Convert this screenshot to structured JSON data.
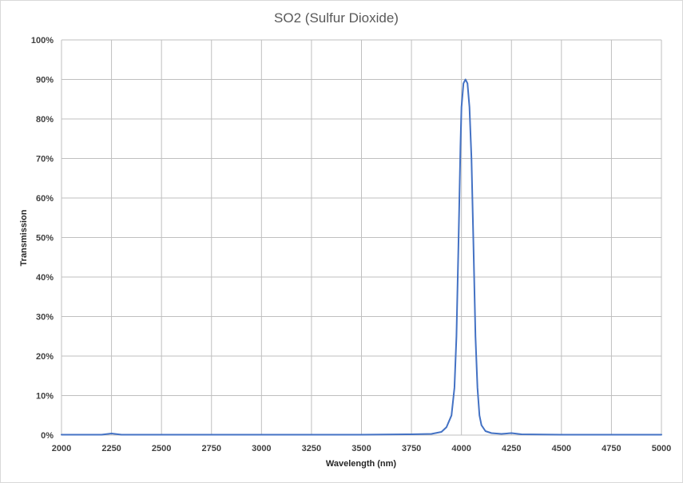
{
  "chart_data": {
    "type": "line",
    "title": "SO2 (Sulfur Dioxide)",
    "xlabel": "Wavelength (nm)",
    "ylabel": "Transmission",
    "xlim": [
      2000,
      5000
    ],
    "ylim": [
      0,
      100
    ],
    "x_ticks": [
      "2000",
      "2250",
      "2500",
      "2750",
      "3000",
      "3250",
      "3500",
      "3750",
      "4000",
      "4250",
      "4500",
      "4750",
      "5000"
    ],
    "y_ticks": [
      "0%",
      "10%",
      "20%",
      "30%",
      "40%",
      "50%",
      "60%",
      "70%",
      "80%",
      "90%",
      "100%"
    ],
    "grid": true,
    "legend": "none",
    "colors": {
      "line": "#4472c4",
      "grid": "#bfbfbf"
    },
    "series": [
      {
        "values_unit": "percent",
        "x": [
          2000,
          2100,
          2200,
          2250,
          2300,
          2400,
          2500,
          2700,
          3000,
          3250,
          3500,
          3750,
          3850,
          3900,
          3925,
          3950,
          3965,
          3975,
          3985,
          3995,
          4000,
          4010,
          4020,
          4030,
          4040,
          4050,
          4060,
          4070,
          4080,
          4090,
          4100,
          4120,
          4150,
          4200,
          4250,
          4300,
          4500,
          5000
        ],
        "y": [
          0.1,
          0.1,
          0.1,
          0.4,
          0.1,
          0.1,
          0.1,
          0.1,
          0.1,
          0.1,
          0.1,
          0.2,
          0.3,
          0.8,
          2,
          5,
          12,
          25,
          48,
          73,
          83,
          89,
          90,
          89,
          83,
          70,
          48,
          25,
          12,
          5,
          2.5,
          1,
          0.5,
          0.3,
          0.5,
          0.2,
          0.1,
          0.1
        ]
      }
    ]
  }
}
